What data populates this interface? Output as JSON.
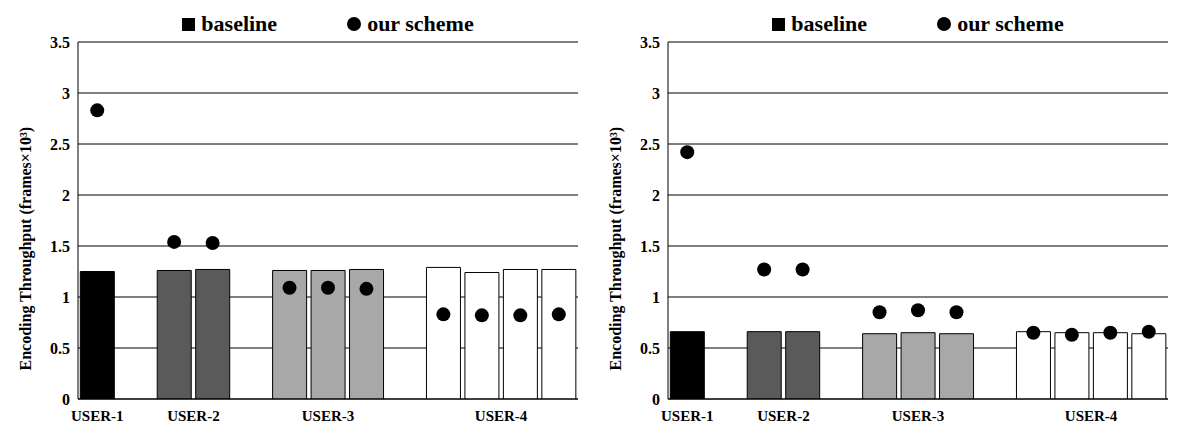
{
  "chart_data": [
    {
      "type": "bar",
      "y_label": "Encoding Throughput (frames×10³)",
      "legend": "top",
      "grid": true,
      "categories": [
        "USER-1",
        null,
        null,
        "USER-2",
        null,
        null,
        "USER-3",
        null,
        null,
        null,
        "USER-4",
        null,
        null
      ],
      "ylim": [
        0,
        3.5
      ],
      "yticks": [
        0,
        0.5,
        1,
        1.5,
        2,
        2.5,
        3,
        3.5
      ],
      "series": [
        {
          "name": "baseline",
          "type": "bar",
          "color": "#000000",
          "colors": [
            "#000000",
            null,
            "#5a5a5a",
            "#5a5a5a",
            null,
            "#a8a8a8",
            "#a8a8a8",
            "#a8a8a8",
            null,
            "#ffffff",
            "#ffffff",
            "#ffffff",
            "#ffffff"
          ],
          "values": [
            1.25,
            null,
            1.26,
            1.27,
            null,
            1.26,
            1.26,
            1.27,
            null,
            1.29,
            1.24,
            1.27,
            1.27
          ]
        },
        {
          "name": "our scheme",
          "type": "scatter",
          "marker": "circle",
          "color": "#000000",
          "values": [
            2.83,
            null,
            1.54,
            1.53,
            null,
            1.09,
            1.09,
            1.08,
            null,
            0.83,
            0.82,
            0.82,
            0.83
          ]
        }
      ]
    },
    {
      "type": "bar",
      "y_label": "Encoding Throughput (frames×10³)",
      "legend": "top",
      "grid": true,
      "categories": [
        "USER-1",
        null,
        null,
        "USER-2",
        null,
        null,
        "USER-3",
        null,
        null,
        null,
        "USER-4",
        null,
        null
      ],
      "ylim": [
        0,
        3.5
      ],
      "yticks": [
        0,
        0.5,
        1,
        1.5,
        2,
        2.5,
        3,
        3.5
      ],
      "series": [
        {
          "name": "baseline",
          "type": "bar",
          "color": "#000000",
          "colors": [
            "#000000",
            null,
            "#5a5a5a",
            "#5a5a5a",
            null,
            "#a8a8a8",
            "#a8a8a8",
            "#a8a8a8",
            null,
            "#ffffff",
            "#ffffff",
            "#ffffff",
            "#ffffff"
          ],
          "values": [
            0.66,
            null,
            0.66,
            0.66,
            null,
            0.64,
            0.65,
            0.64,
            null,
            0.66,
            0.65,
            0.65,
            0.64
          ]
        },
        {
          "name": "our scheme",
          "type": "scatter",
          "marker": "circle",
          "color": "#000000",
          "values": [
            2.42,
            null,
            1.27,
            1.27,
            null,
            0.85,
            0.87,
            0.85,
            null,
            0.65,
            0.63,
            0.65,
            0.66
          ]
        }
      ]
    }
  ]
}
